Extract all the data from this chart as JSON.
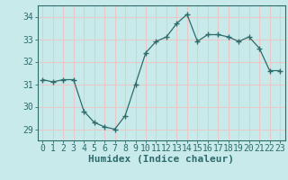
{
  "x": [
    0,
    1,
    2,
    3,
    4,
    5,
    6,
    7,
    8,
    9,
    10,
    11,
    12,
    13,
    14,
    15,
    16,
    17,
    18,
    19,
    20,
    21,
    22,
    23
  ],
  "y": [
    31.2,
    31.1,
    31.2,
    31.2,
    29.8,
    29.3,
    29.1,
    29.0,
    29.6,
    31.0,
    32.4,
    32.9,
    33.1,
    33.7,
    34.1,
    32.9,
    33.2,
    33.2,
    33.1,
    32.9,
    33.1,
    32.6,
    31.6,
    31.6
  ],
  "line_color": "#2e6b6b",
  "marker": "+",
  "bg_color": "#c8eaea",
  "grid_color": "#e8c8c8",
  "xlabel": "Humidex (Indice chaleur)",
  "ylim": [
    28.5,
    34.5
  ],
  "yticks": [
    29,
    30,
    31,
    32,
    33,
    34
  ],
  "xticks": [
    0,
    1,
    2,
    3,
    4,
    5,
    6,
    7,
    8,
    9,
    10,
    11,
    12,
    13,
    14,
    15,
    16,
    17,
    18,
    19,
    20,
    21,
    22,
    23
  ],
  "font_color": "#2e6b6b",
  "tick_fontsize": 7,
  "xlabel_fontsize": 8
}
